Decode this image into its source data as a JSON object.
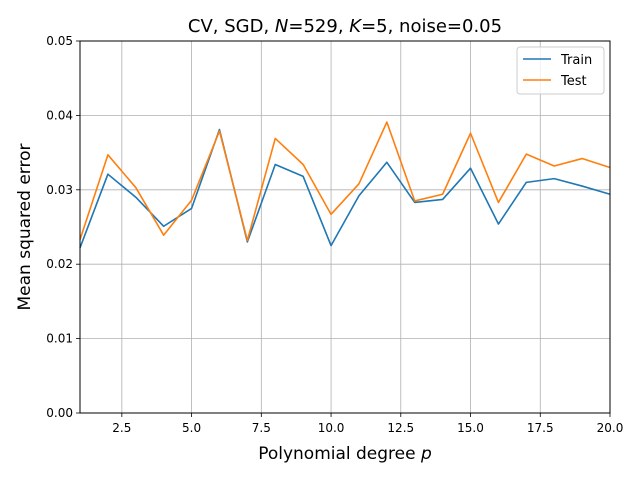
{
  "chart_data": {
    "type": "line",
    "title_parts": {
      "prefix": "CV, SGD, ",
      "n_symbol": "N",
      "n_value": "=529, ",
      "k_symbol": "K",
      "k_value": "=5, noise=0.05"
    },
    "xlabel_prefix": "Polynomial degree ",
    "xlabel_var": "p",
    "ylabel": "Mean squared error",
    "xlim": [
      1,
      20
    ],
    "ylim": [
      0,
      0.05
    ],
    "xticks": [
      2.5,
      5.0,
      7.5,
      10.0,
      12.5,
      15.0,
      17.5,
      20.0
    ],
    "xtick_labels": [
      "2.5",
      "5.0",
      "7.5",
      "10.0",
      "12.5",
      "15.0",
      "17.5",
      "20.0"
    ],
    "yticks": [
      0,
      0.01,
      0.02,
      0.03,
      0.04,
      0.05
    ],
    "ytick_labels": [
      "0.00",
      "0.01",
      "0.02",
      "0.03",
      "0.04",
      "0.05"
    ],
    "grid": true,
    "legend_position": "top-right",
    "x": [
      1,
      2,
      3,
      4,
      5,
      6,
      7,
      8,
      9,
      10,
      11,
      12,
      13,
      14,
      15,
      16,
      17,
      18,
      19,
      20
    ],
    "series": [
      {
        "name": "Train",
        "color": "#1f77b4",
        "values": [
          0.0222,
          0.0321,
          0.029,
          0.0251,
          0.0275,
          0.0381,
          0.023,
          0.0334,
          0.0318,
          0.0225,
          0.0292,
          0.0337,
          0.0283,
          0.0287,
          0.0329,
          0.0254,
          0.031,
          0.0315,
          0.0305,
          0.0294
        ]
      },
      {
        "name": "Test",
        "color": "#ff7f0e",
        "values": [
          0.0233,
          0.0347,
          0.0303,
          0.0239,
          0.0286,
          0.0379,
          0.0232,
          0.0369,
          0.0334,
          0.0267,
          0.0308,
          0.0391,
          0.0285,
          0.0294,
          0.0376,
          0.0283,
          0.0348,
          0.0332,
          0.0342,
          0.033
        ]
      }
    ]
  }
}
